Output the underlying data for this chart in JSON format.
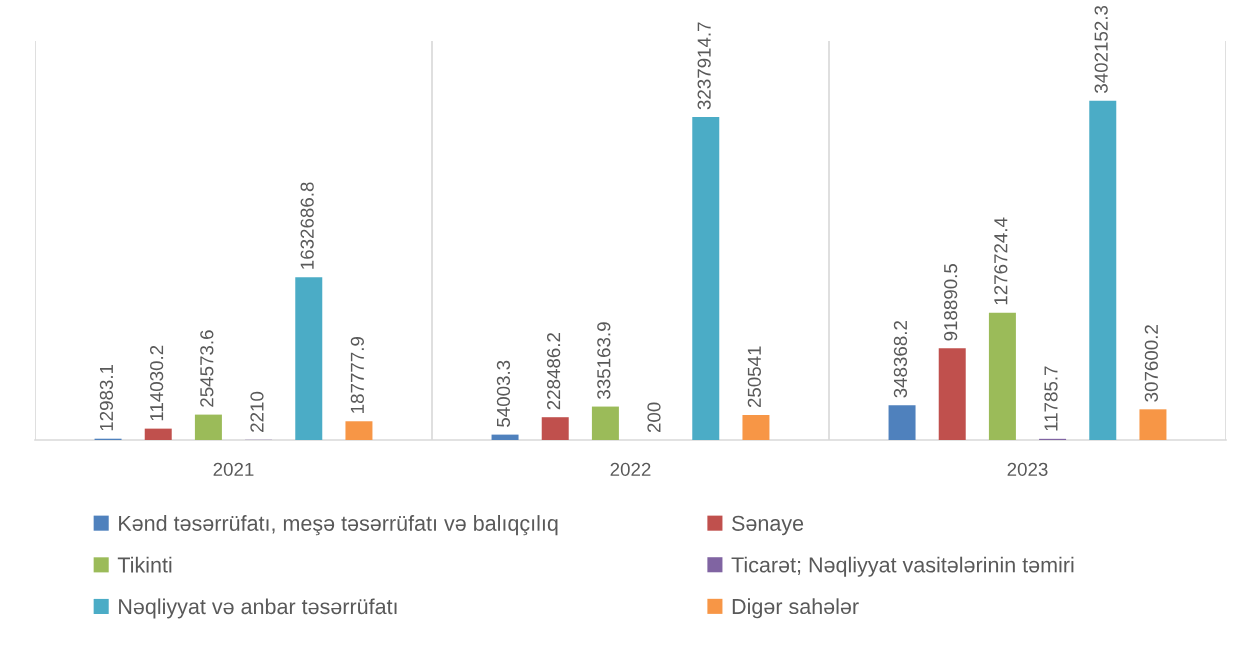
{
  "chart_data": {
    "type": "bar",
    "categories": [
      "2021",
      "2022",
      "2023"
    ],
    "series": [
      {
        "name": "Kənd təsərrüfatı, meşə təsərrüfatı və balıqçılıq",
        "color": "#4f81bd",
        "values": [
          12983.1,
          54003.3,
          348368.2
        ]
      },
      {
        "name": "Sənaye",
        "color": "#c0504d",
        "values": [
          114030.2,
          228486.2,
          918890.5
        ]
      },
      {
        "name": "Tikinti",
        "color": "#9bbb59",
        "values": [
          254573.6,
          335163.9,
          1276724.4
        ]
      },
      {
        "name": "Ticarət; Nəqliyyat vasitələrinin təmiri",
        "color": "#8064a2",
        "values": [
          2210,
          200,
          11785.7
        ]
      },
      {
        "name": "Nəqliyyat və anbar təsərrüfatı",
        "color": "#4bacc6",
        "values": [
          1632686.8,
          3237914.7,
          3402152.3
        ]
      },
      {
        "name": "Digər sahələr",
        "color": "#f79646",
        "values": [
          187777.9,
          250541,
          307600.2
        ]
      }
    ],
    "ylim": [
      0,
      4000000
    ],
    "tick_labels": "x",
    "grid": "x",
    "legend": "bottom",
    "data_labels": true
  }
}
